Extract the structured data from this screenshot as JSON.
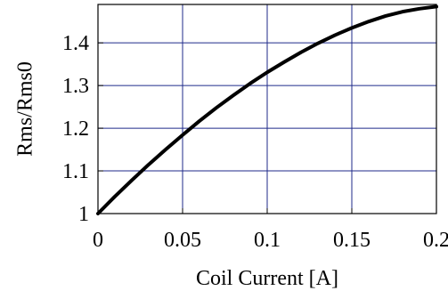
{
  "chart_data": {
    "type": "line",
    "title": "",
    "xlabel": "Coil Current [A]",
    "ylabel": "Rms/Rms0",
    "xlim": [
      0,
      0.2
    ],
    "ylim": [
      1,
      1.49
    ],
    "xticks": [
      {
        "value": 0,
        "label": "0"
      },
      {
        "value": 0.05,
        "label": "0.05"
      },
      {
        "value": 0.1,
        "label": "0.1"
      },
      {
        "value": 0.15,
        "label": "0.15"
      },
      {
        "value": 0.2,
        "label": "0.2"
      }
    ],
    "yticks": [
      {
        "value": 1,
        "label": "1"
      },
      {
        "value": 1.1,
        "label": "1.1"
      },
      {
        "value": 1.2,
        "label": "1.2"
      },
      {
        "value": 1.3,
        "label": "1.3"
      },
      {
        "value": 1.4,
        "label": "1.4"
      }
    ],
    "grid": true,
    "grid_color": "#1f2a8a",
    "line_color": "#000000",
    "series": [
      {
        "x": [
          0,
          0.01,
          0.02,
          0.03,
          0.04,
          0.05,
          0.06,
          0.07,
          0.08,
          0.09,
          0.1,
          0.11,
          0.12,
          0.13,
          0.14,
          0.15,
          0.16,
          0.17,
          0.18,
          0.19,
          0.2
        ],
        "y": [
          1.0,
          1.04,
          1.078,
          1.115,
          1.15,
          1.184,
          1.217,
          1.248,
          1.277,
          1.305,
          1.331,
          1.355,
          1.378,
          1.399,
          1.418,
          1.435,
          1.45,
          1.463,
          1.473,
          1.48,
          1.485
        ]
      }
    ]
  }
}
